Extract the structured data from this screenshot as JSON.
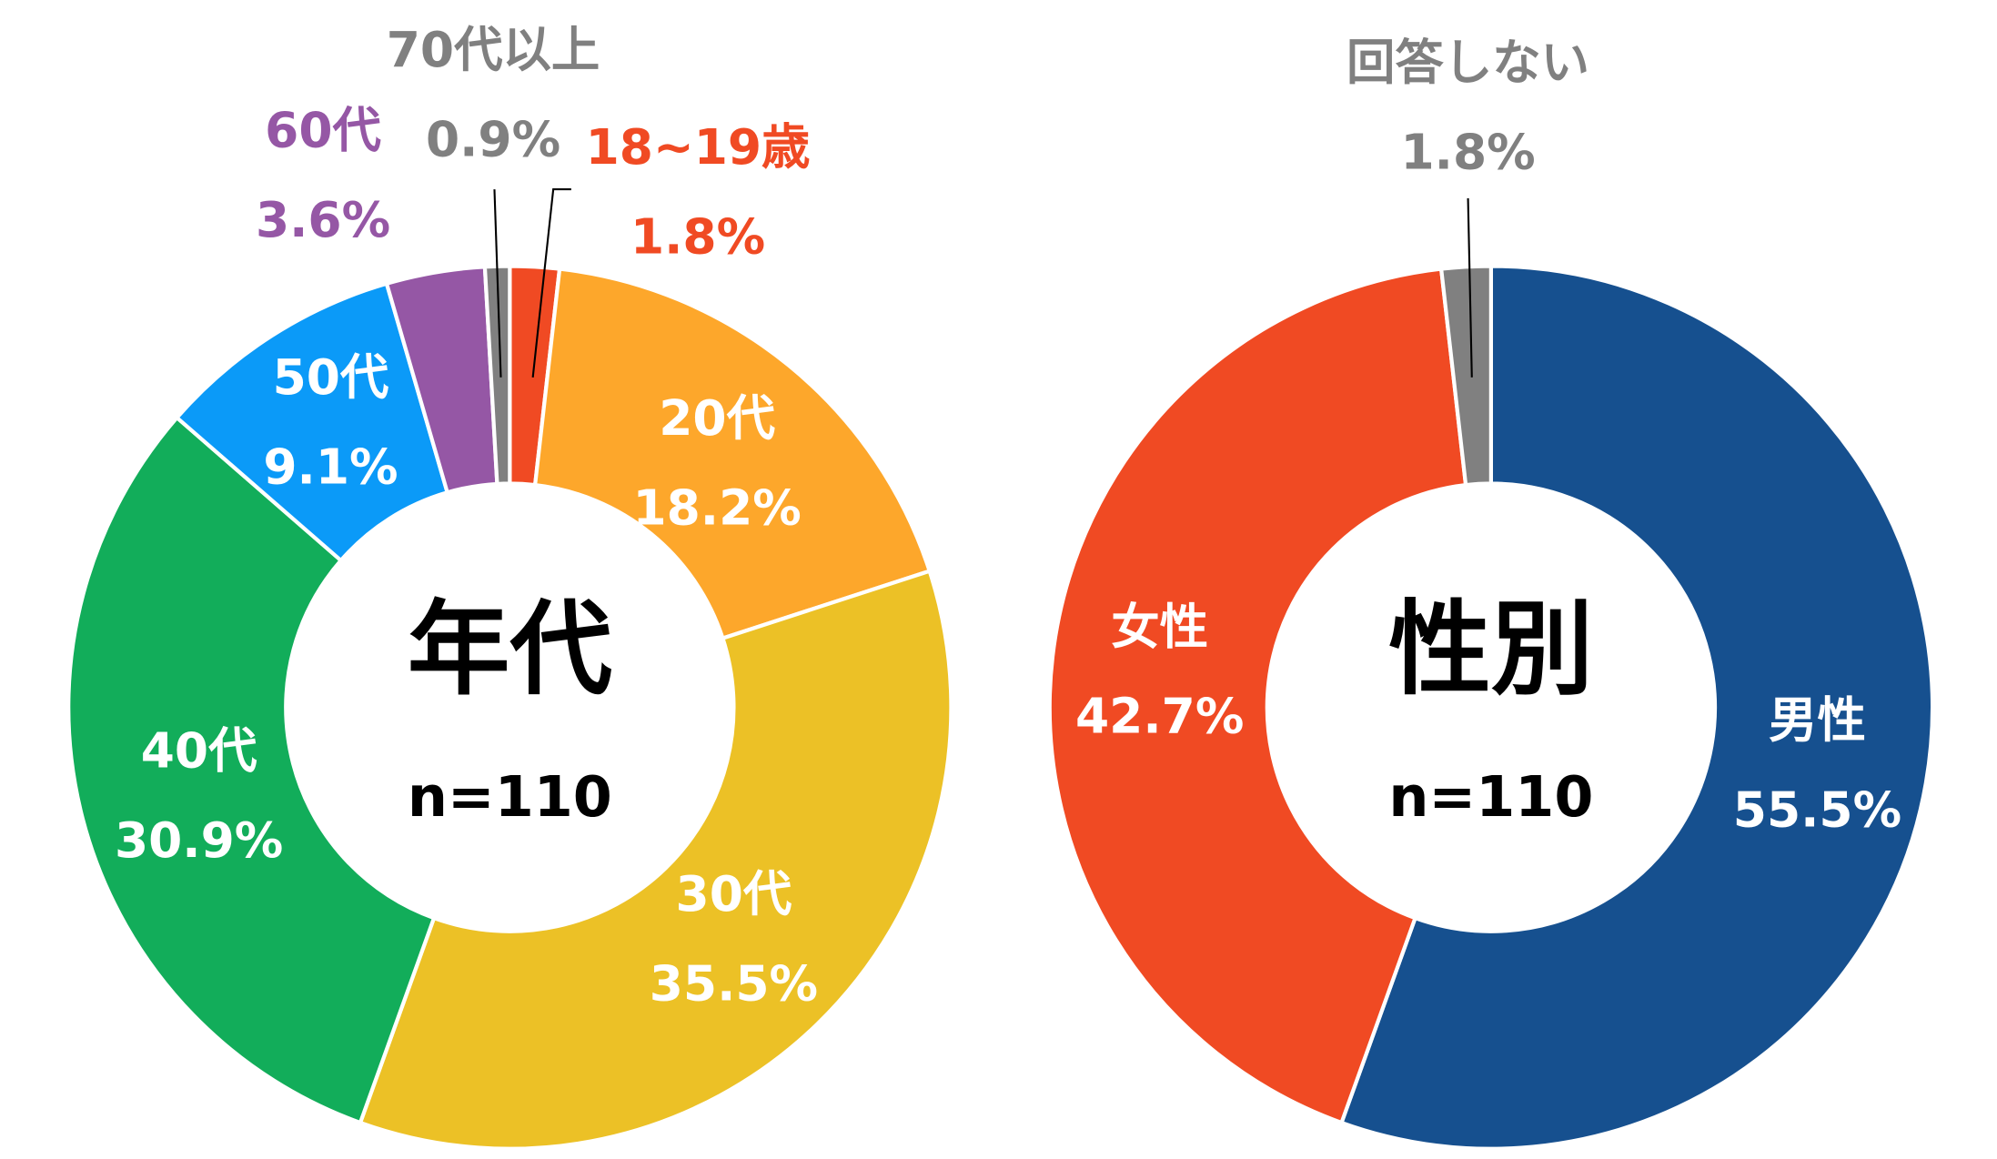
{
  "chart_data": [
    {
      "type": "pie",
      "donut": true,
      "center_title": "年代",
      "center_subtitle": "n=110",
      "unit": "%",
      "slices": [
        {
          "label": "18~19歳",
          "value": 1.8,
          "value_label": "1.8%",
          "color": "#F04A23"
        },
        {
          "label": "20代",
          "value": 18.2,
          "value_label": "18.2%",
          "color": "#FDA72B"
        },
        {
          "label": "30代",
          "value": 35.5,
          "value_label": "35.5%",
          "color": "#ECC126"
        },
        {
          "label": "40代",
          "value": 30.9,
          "value_label": "30.9%",
          "color": "#12AD5A"
        },
        {
          "label": "50代",
          "value": 9.1,
          "value_label": "9.1%",
          "color": "#0B9AF8"
        },
        {
          "label": "60代",
          "value": 3.6,
          "value_label": "3.6%",
          "color": "#9557A5"
        },
        {
          "label": "70代以上",
          "value": 0.9,
          "value_label": "0.9%",
          "color": "#808080"
        }
      ]
    },
    {
      "type": "pie",
      "donut": true,
      "center_title": "性別",
      "center_subtitle": "n=110",
      "unit": "%",
      "slices": [
        {
          "label": "男性",
          "value": 55.5,
          "value_label": "55.5%",
          "color": "#16508F"
        },
        {
          "label": "女性",
          "value": 42.7,
          "value_label": "42.7%",
          "color": "#F04A23"
        },
        {
          "label": "回答しない",
          "value": 1.8,
          "value_label": "1.8%",
          "color": "#808080"
        }
      ]
    }
  ]
}
